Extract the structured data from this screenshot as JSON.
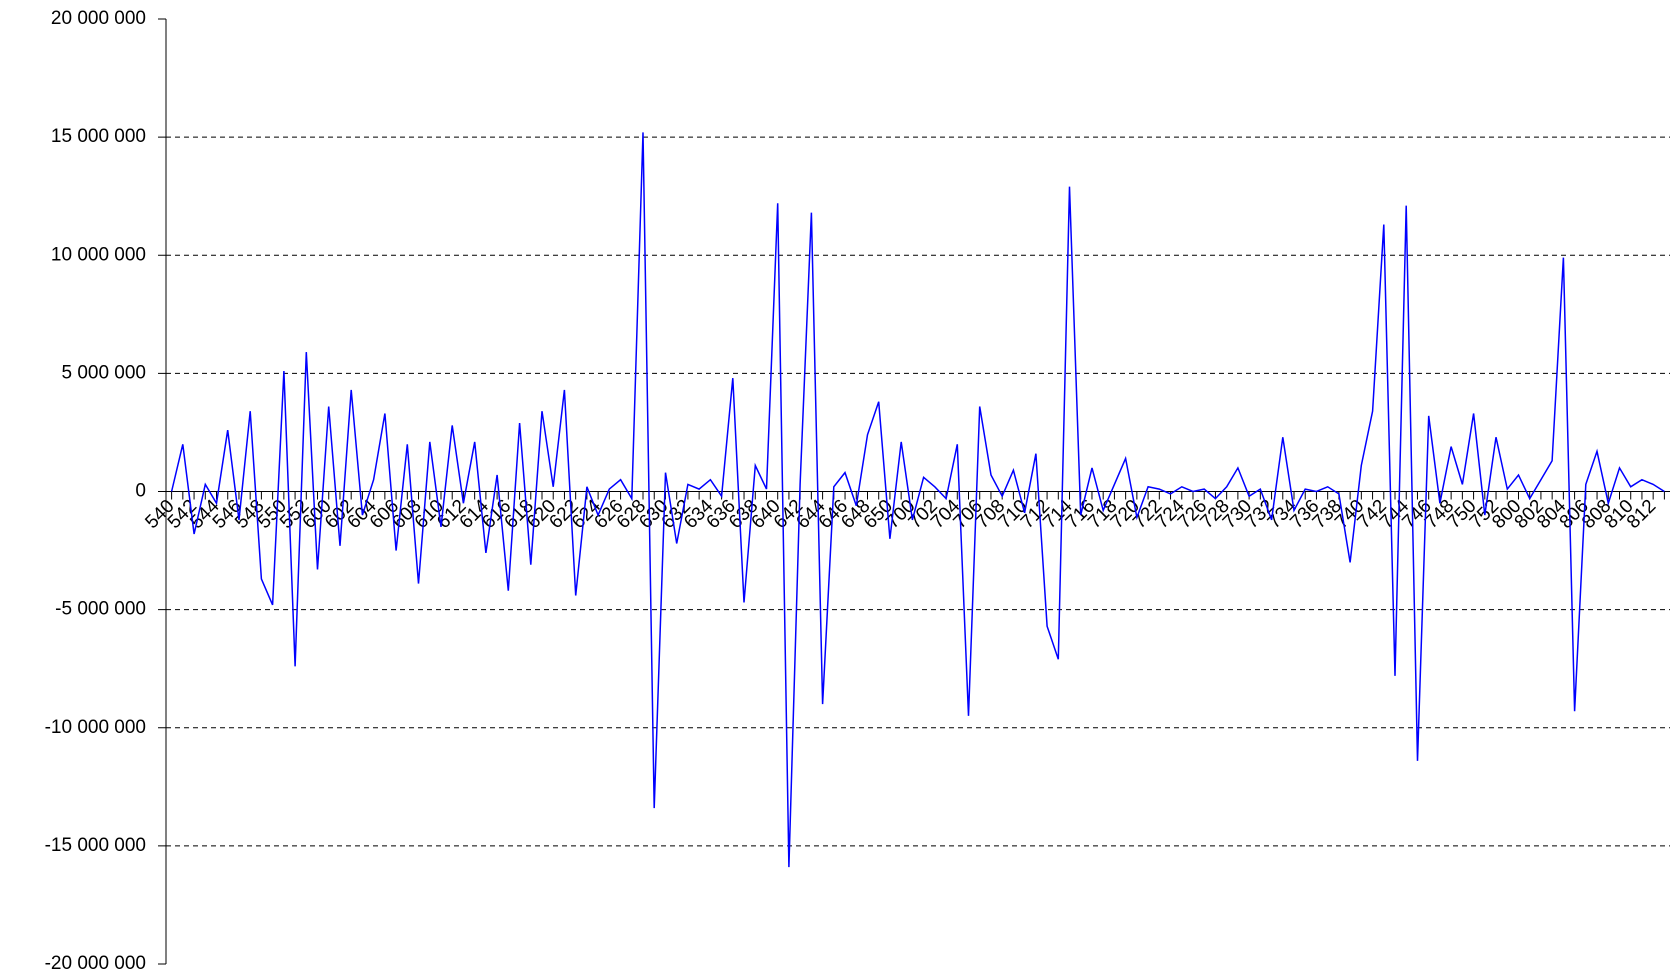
{
  "chart_data": {
    "type": "line",
    "categories": [
      "540",
      null,
      "542",
      null,
      "544",
      null,
      "546",
      null,
      "548",
      null,
      "550",
      null,
      "552",
      null,
      "600",
      null,
      "602",
      null,
      "604",
      null,
      "606",
      null,
      "608",
      null,
      "610",
      null,
      "612",
      null,
      "614",
      null,
      "616",
      null,
      "618",
      null,
      "620",
      null,
      "622",
      null,
      "624",
      null,
      "626",
      null,
      "628",
      null,
      "630",
      null,
      "632",
      null,
      "634",
      null,
      "636",
      null,
      "638",
      null,
      "640",
      null,
      "642",
      null,
      "644",
      null,
      "646",
      null,
      "648",
      null,
      "650",
      null,
      "700",
      null,
      "702",
      null,
      "704",
      null,
      "706",
      null,
      "708",
      null,
      "710",
      null,
      "712",
      null,
      "714",
      null,
      "716",
      null,
      "718",
      null,
      "720",
      null,
      "722",
      null,
      "724",
      null,
      "726",
      null,
      "728",
      null,
      "730",
      null,
      "732",
      null,
      "734",
      null,
      "736",
      null,
      "738",
      null,
      "740",
      null,
      "742",
      null,
      "744",
      null,
      "746",
      null,
      "748",
      null,
      "750",
      null,
      "752",
      null,
      "800",
      null,
      "802",
      null,
      "804",
      null,
      "806",
      null,
      "808",
      null,
      "810",
      null,
      "812",
      null
    ],
    "series": [
      {
        "color": "#0000ff",
        "values": [
          0,
          2000000,
          -1800000,
          300000,
          -500000,
          2600000,
          -1200000,
          3400000,
          -3700000,
          -4800000,
          5100000,
          -7400000,
          5900000,
          -3300000,
          3600000,
          -2300000,
          4300000,
          -1000000,
          500000,
          3300000,
          -2500000,
          2000000,
          -3900000,
          2100000,
          -1500000,
          2800000,
          -500000,
          2100000,
          -2600000,
          700000,
          -4200000,
          2900000,
          -3100000,
          3400000,
          200000,
          4300000,
          -4400000,
          200000,
          -1000000,
          100000,
          500000,
          -300000,
          15200000,
          -13400000,
          800000,
          -2200000,
          300000,
          100000,
          500000,
          -200000,
          4800000,
          -4700000,
          1100000,
          100000,
          12200000,
          -15900000,
          300000,
          11800000,
          -9000000,
          200000,
          800000,
          -600000,
          2400000,
          3800000,
          -2000000,
          2100000,
          -1200000,
          600000,
          200000,
          -300000,
          2000000,
          -9500000,
          3600000,
          700000,
          -200000,
          900000,
          -900000,
          1600000,
          -5700000,
          -7100000,
          12900000,
          -1000000,
          1000000,
          -800000,
          300000,
          1400000,
          -1100000,
          200000,
          100000,
          -100000,
          200000,
          0,
          100000,
          -300000,
          200000,
          1000000,
          -200000,
          100000,
          -1200000,
          2300000,
          -800000,
          100000,
          0,
          200000,
          -100000,
          -3000000,
          1100000,
          3400000,
          11300000,
          -7800000,
          12100000,
          -11400000,
          3200000,
          -500000,
          1900000,
          300000,
          3300000,
          -1000000,
          2300000,
          100000,
          700000,
          -300000,
          500000,
          1300000,
          9900000,
          -9300000,
          300000,
          1700000,
          -500000,
          1000000,
          200000,
          500000,
          300000,
          0
        ]
      }
    ],
    "ylim": [
      -20000000,
      20000000
    ],
    "yticks": [
      {
        "value": -20000000,
        "label": "-20 000 000"
      },
      {
        "value": -15000000,
        "label": "-15 000 000"
      },
      {
        "value": -10000000,
        "label": "-10 000 000"
      },
      {
        "value": -5000000,
        "label": "-5 000 000"
      },
      0,
      {
        "value": 5000000,
        "label": "5 000 000"
      },
      {
        "value": 10000000,
        "label": "10 000 000"
      },
      {
        "value": 15000000,
        "label": "15 000 000"
      },
      {
        "value": 20000000,
        "label": "20 000 000"
      }
    ],
    "grid": true
  }
}
